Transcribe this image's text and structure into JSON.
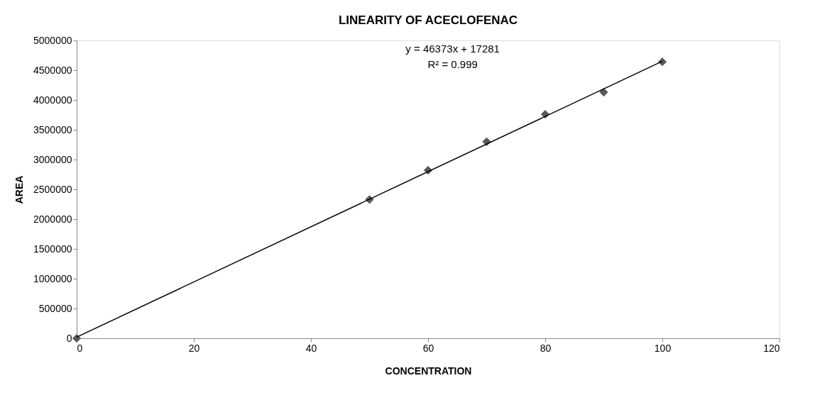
{
  "chart_data": {
    "type": "scatter",
    "title": "LINEARITY OF ACECLOFENAC",
    "xlabel": "CONCENTRATION",
    "ylabel": "AREA",
    "grid": false,
    "legend": false,
    "xlim": [
      0,
      120
    ],
    "xticks": [
      0,
      20,
      40,
      60,
      80,
      100,
      120
    ],
    "ylim": [
      0,
      5000000
    ],
    "yticks": [
      0,
      500000,
      1000000,
      1500000,
      2000000,
      2500000,
      3000000,
      3500000,
      4000000,
      4500000,
      5000000
    ],
    "series": [
      {
        "color": "#595959",
        "marker": "diamond",
        "x": [
          0,
          50,
          60,
          70,
          80,
          90,
          100
        ],
        "values": [
          0,
          2330000,
          2820000,
          3300000,
          3760000,
          4130000,
          4640000
        ]
      },
      {
        "type": "line",
        "color": "#000000",
        "line_style": "solid",
        "x": [
          0,
          100
        ],
        "values": [
          20000,
          4650000
        ]
      }
    ],
    "annotations": [
      "y = 46373x + 17281",
      "R² = 0.999"
    ]
  }
}
